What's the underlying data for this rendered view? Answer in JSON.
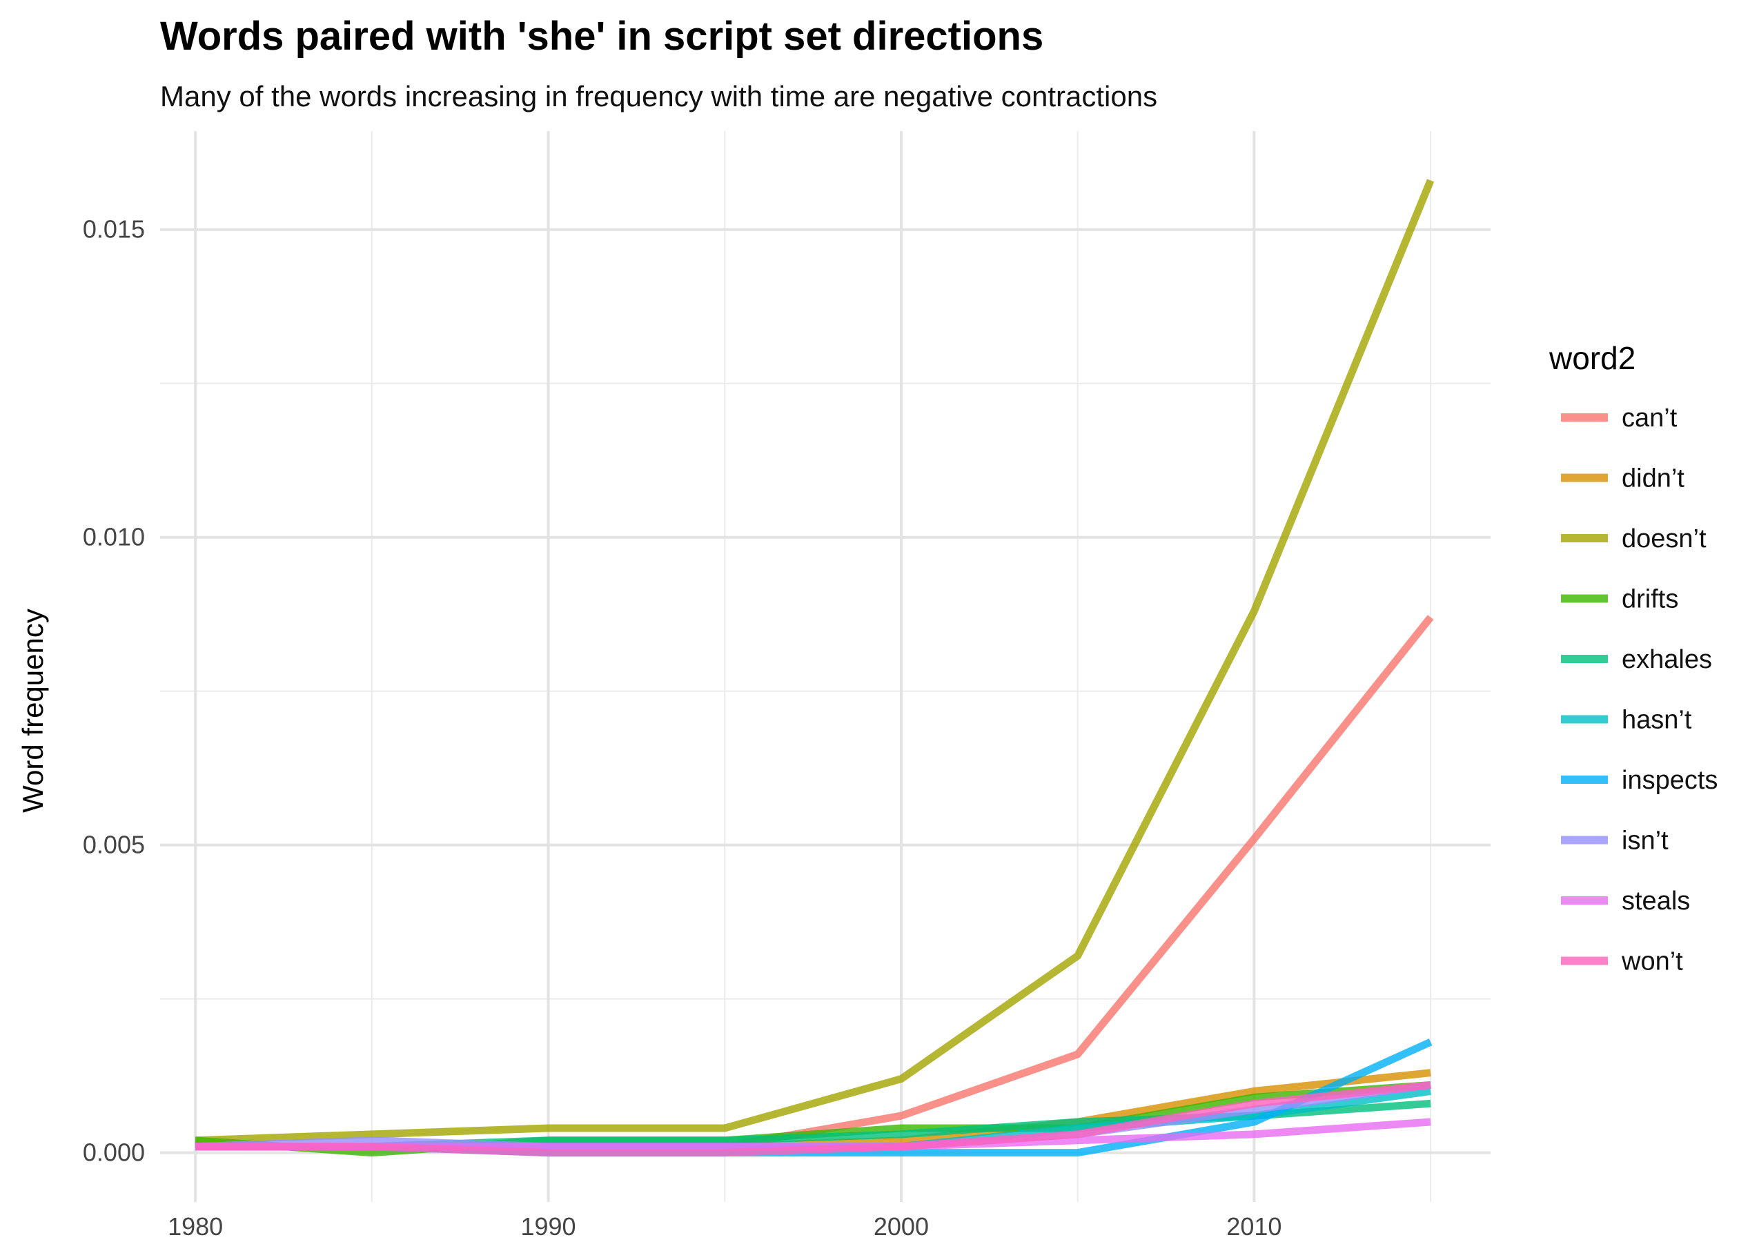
{
  "chart_data": {
    "type": "line",
    "title": "Words paired with 'she' in script set directions",
    "subtitle": "Many of the words increasing in frequency with time are negative contractions",
    "xlabel": "",
    "ylabel": "Word frequency",
    "xlim": [
      1979,
      2016.7
    ],
    "ylim": [
      -0.0008,
      0.0166
    ],
    "x_ticks": [
      1980,
      1990,
      2000,
      2010
    ],
    "x_tick_labels": [
      "1980",
      "1990",
      "2000",
      "2010"
    ],
    "y_ticks": [
      0.0,
      0.005,
      0.01,
      0.015
    ],
    "y_tick_labels": [
      "0.000",
      "0.005",
      "0.010",
      "0.015"
    ],
    "grid": true,
    "legend": {
      "title": "word2",
      "position": "right"
    },
    "x": [
      1980,
      1985,
      1990,
      1995,
      2000,
      2005,
      2010,
      2015
    ],
    "series": [
      {
        "name": "can’t",
        "color": "#F8766D",
        "values": [
          0.0001,
          0.0001,
          0.0001,
          0.0001,
          0.0006,
          0.0016,
          0.0051,
          0.0087
        ]
      },
      {
        "name": "didn’t",
        "color": "#D89000",
        "values": [
          0.0001,
          0.0001,
          0.0001,
          0.0001,
          0.0002,
          0.0005,
          0.001,
          0.0013
        ]
      },
      {
        "name": "doesn’t",
        "color": "#A3A500",
        "values": [
          0.0002,
          0.0003,
          0.0004,
          0.0004,
          0.0012,
          0.0032,
          0.0088,
          0.0158
        ]
      },
      {
        "name": "drifts",
        "color": "#39B600",
        "values": [
          0.0002,
          0.0,
          0.0002,
          0.0002,
          0.0004,
          0.0004,
          0.0009,
          0.0011
        ]
      },
      {
        "name": "exhales",
        "color": "#00BF7D",
        "values": [
          0.0001,
          0.0001,
          0.0002,
          0.0002,
          0.0003,
          0.0005,
          0.0006,
          0.0008
        ]
      },
      {
        "name": "hasn’t",
        "color": "#00BFC4",
        "values": [
          0.0001,
          0.0001,
          0.0001,
          0.0001,
          0.0001,
          0.0004,
          0.0006,
          0.001
        ]
      },
      {
        "name": "inspects",
        "color": "#00B0F6",
        "values": [
          0.0001,
          0.0001,
          0.0,
          0.0,
          0.0,
          0.0,
          0.0005,
          0.0018
        ]
      },
      {
        "name": "isn’t",
        "color": "#9590FF",
        "values": [
          0.0001,
          0.0002,
          0.0001,
          0.0001,
          0.0001,
          0.0003,
          0.0007,
          0.0011
        ]
      },
      {
        "name": "steals",
        "color": "#E76BF3",
        "values": [
          0.0001,
          0.0001,
          0.0001,
          0.0001,
          0.0001,
          0.0002,
          0.0003,
          0.0005
        ]
      },
      {
        "name": "won’t",
        "color": "#FF62BC",
        "values": [
          0.0001,
          0.0001,
          0.0,
          0.0,
          0.0001,
          0.0003,
          0.0008,
          0.0011
        ]
      }
    ]
  }
}
